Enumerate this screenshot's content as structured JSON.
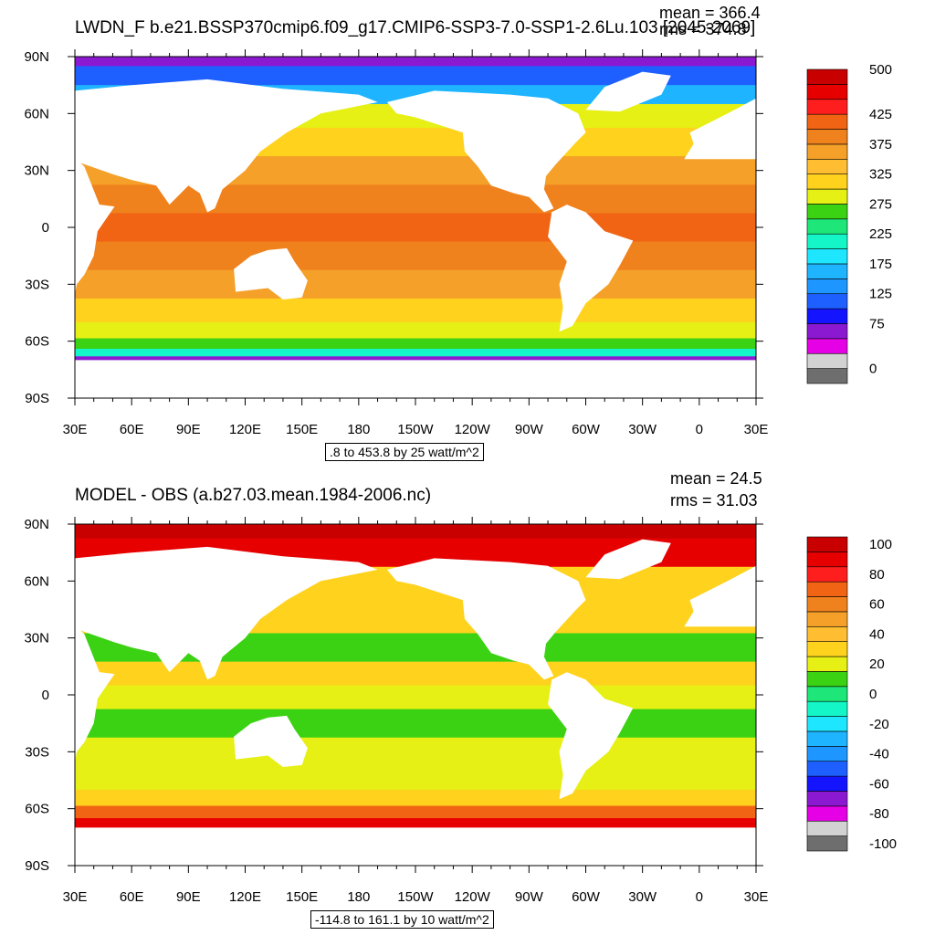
{
  "chart_data": [
    {
      "type": "heatmap",
      "title": "LWDN_F b.e21.BSSP370cmip6.f09_g17.CMIP6-SSP3-7.0-SSP1-2.6Lu.103 [2045-2069]",
      "stats": {
        "mean": "mean = 366.4",
        "rms": "rms = 374.8"
      },
      "range_text": ".8 to 453.8 by 25 watt/m^2",
      "x_ticks": [
        "30E",
        "60E",
        "90E",
        "120E",
        "150E",
        "180",
        "150W",
        "120W",
        "90W",
        "60W",
        "30W",
        "0",
        "30E"
      ],
      "y_ticks": [
        "90N",
        "60N",
        "30N",
        "0",
        "30S",
        "60S",
        "90S"
      ],
      "colorbar": {
        "colors": [
          "#6e6e6e",
          "#d2d2d2",
          "#e600e6",
          "#8c19d2",
          "#1414ff",
          "#1e5fff",
          "#1e96ff",
          "#1eb4ff",
          "#1ee6ff",
          "#14f5c8",
          "#1ee678",
          "#3cd214",
          "#e6f014",
          "#ffd21e",
          "#ffbe32",
          "#f5a028",
          "#f0821e",
          "#f06414",
          "#ff1e1e",
          "#e60000",
          "#c80000"
        ],
        "labels": [
          "0",
          "75",
          "125",
          "175",
          "225",
          "275",
          "325",
          "375",
          "425",
          "500"
        ],
        "label_positions": [
          0,
          3,
          5,
          7,
          9,
          11,
          13,
          15,
          17,
          20
        ]
      },
      "zonal_bands": [
        {
          "lat": 90,
          "value": 85
        },
        {
          "lat": 80,
          "value": 120
        },
        {
          "lat": 70,
          "value": 175
        },
        {
          "lat": 60,
          "value": 300
        },
        {
          "lat": 45,
          "value": 335
        },
        {
          "lat": 30,
          "value": 370
        },
        {
          "lat": 15,
          "value": 405
        },
        {
          "lat": 0,
          "value": 420
        },
        {
          "lat": -15,
          "value": 405
        },
        {
          "lat": -30,
          "value": 370
        },
        {
          "lat": -45,
          "value": 330
        },
        {
          "lat": -55,
          "value": 310
        },
        {
          "lat": -62,
          "value": 270
        },
        {
          "lat": -66,
          "value": 225
        },
        {
          "lat": -70,
          "value": 85
        }
      ]
    },
    {
      "type": "heatmap",
      "title": "MODEL - OBS (a.b27.03.mean.1984-2006.nc)",
      "stats": {
        "mean": "mean = 24.5",
        "rms": "rms = 31.03"
      },
      "range_text": "-114.8 to 161.1 by 10 watt/m^2",
      "x_ticks": [
        "30E",
        "60E",
        "90E",
        "120E",
        "150E",
        "180",
        "150W",
        "120W",
        "90W",
        "60W",
        "30W",
        "0",
        "30E"
      ],
      "y_ticks": [
        "90N",
        "60N",
        "30N",
        "0",
        "30S",
        "60S",
        "90S"
      ],
      "colorbar": {
        "colors": [
          "#6e6e6e",
          "#d2d2d2",
          "#e600e6",
          "#8c19d2",
          "#1414ff",
          "#1e5fff",
          "#1e96ff",
          "#1eb4ff",
          "#1ee6ff",
          "#14f5c8",
          "#1ee678",
          "#3cd214",
          "#e6f014",
          "#ffd21e",
          "#ffbe32",
          "#f5a028",
          "#f0821e",
          "#f06414",
          "#ff1e1e",
          "#e60000",
          "#c80000"
        ],
        "labels": [
          "100",
          "80",
          "60",
          "40",
          "20",
          "0",
          "-20",
          "-40",
          "-60",
          "-80",
          "-100"
        ],
        "label_positions": [
          20,
          18,
          16,
          14,
          12,
          10,
          8,
          6,
          4,
          2,
          0
        ]
      },
      "zonal_bands": [
        {
          "lat": 90,
          "value": 95
        },
        {
          "lat": 75,
          "value": 85
        },
        {
          "lat": 60,
          "value": 25
        },
        {
          "lat": 40,
          "value": 25
        },
        {
          "lat": 25,
          "value": 10
        },
        {
          "lat": 10,
          "value": 25
        },
        {
          "lat": 0,
          "value": 20
        },
        {
          "lat": -15,
          "value": 5
        },
        {
          "lat": -30,
          "value": 20
        },
        {
          "lat": -45,
          "value": 20
        },
        {
          "lat": -55,
          "value": 30
        },
        {
          "lat": -62,
          "value": 70
        },
        {
          "lat": -68,
          "value": 90
        }
      ]
    }
  ]
}
